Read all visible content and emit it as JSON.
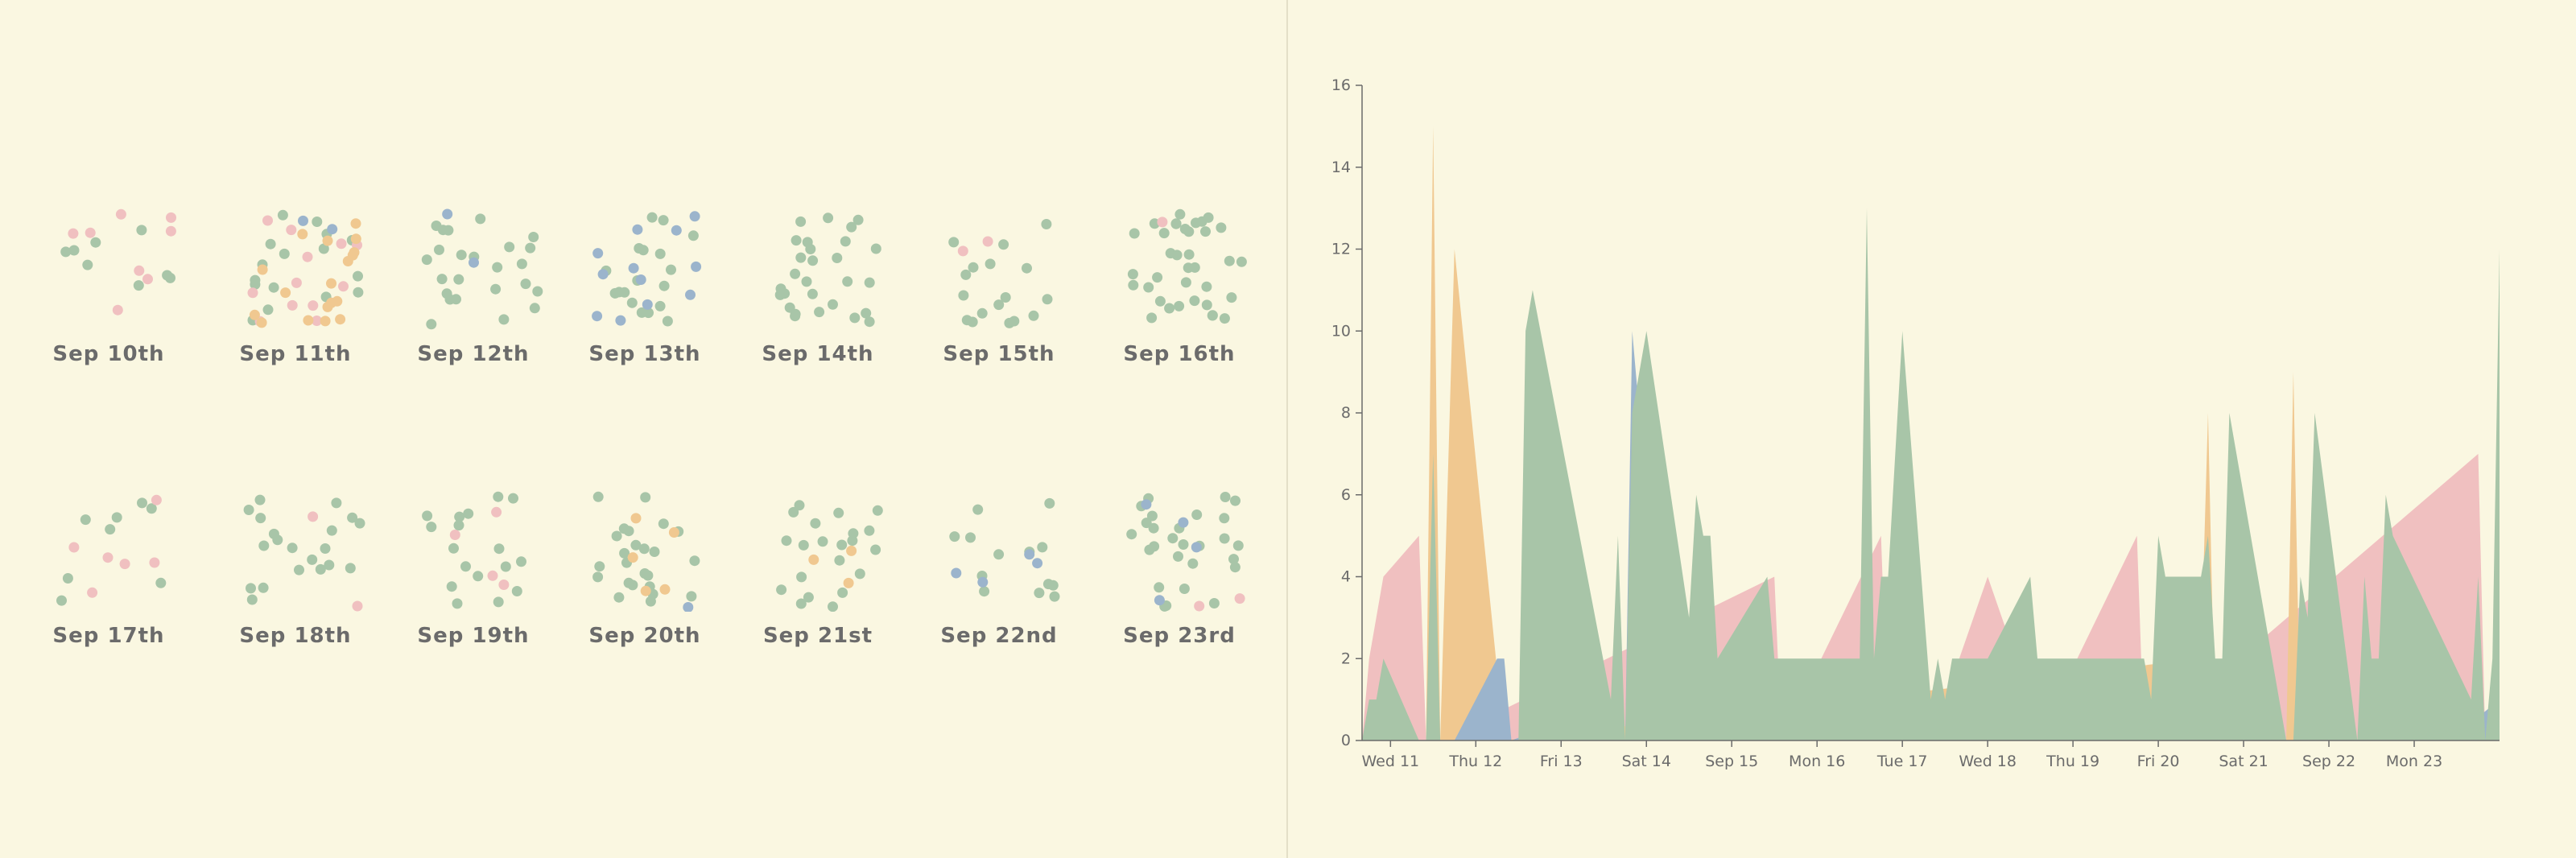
{
  "colors": {
    "background": "#faf7e1",
    "pink": "#f0c0c0",
    "orange": "#f0c890",
    "green": "#a8c5a8",
    "blue": "#9bb4cc",
    "axis": "#6b6b6b"
  },
  "dot_panel": {
    "days": [
      {
        "label": "Sep 10th",
        "counts": {
          "pink": 8,
          "orange": 0,
          "green": 8,
          "blue": 0
        }
      },
      {
        "label": "Sep 11th",
        "counts": {
          "pink": 12,
          "orange": 18,
          "green": 16,
          "blue": 2
        }
      },
      {
        "label": "Sep 12th",
        "counts": {
          "pink": 0,
          "orange": 0,
          "green": 24,
          "blue": 2
        }
      },
      {
        "label": "Sep 13th",
        "counts": {
          "pink": 0,
          "orange": 0,
          "green": 18,
          "blue": 12
        }
      },
      {
        "label": "Sep 14th",
        "counts": {
          "pink": 0,
          "orange": 0,
          "green": 28,
          "blue": 0
        }
      },
      {
        "label": "Sep 15th",
        "counts": {
          "pink": 2,
          "orange": 0,
          "green": 17,
          "blue": 0
        }
      },
      {
        "label": "Sep 16th",
        "counts": {
          "pink": 1,
          "orange": 0,
          "green": 36,
          "blue": 0
        }
      },
      {
        "label": "Sep 17th",
        "counts": {
          "pink": 6,
          "orange": 0,
          "green": 8,
          "blue": 0
        }
      },
      {
        "label": "Sep 18th",
        "counts": {
          "pink": 2,
          "orange": 0,
          "green": 20,
          "blue": 0
        }
      },
      {
        "label": "Sep 19th",
        "counts": {
          "pink": 4,
          "orange": 0,
          "green": 17,
          "blue": 0
        }
      },
      {
        "label": "Sep 20th",
        "counts": {
          "pink": 0,
          "orange": 5,
          "green": 24,
          "blue": 1
        }
      },
      {
        "label": "Sep 21st",
        "counts": {
          "pink": 0,
          "orange": 3,
          "green": 21,
          "blue": 0
        }
      },
      {
        "label": "Sep 22nd",
        "counts": {
          "pink": 0,
          "orange": 0,
          "green": 13,
          "blue": 4
        }
      },
      {
        "label": "Sep 23rd",
        "counts": {
          "pink": 2,
          "orange": 0,
          "green": 27,
          "blue": 4
        }
      }
    ]
  },
  "chart_data": {
    "type": "area",
    "title": "",
    "xlabel": "",
    "ylabel": "",
    "ylim": [
      0,
      16
    ],
    "yticks": [
      0,
      2,
      4,
      6,
      8,
      10,
      12,
      14,
      16
    ],
    "xlim": [
      "2019-09-10T16:00",
      "2019-09-24T00:00"
    ],
    "xticks": [
      {
        "label": "Wed 11",
        "x": "2019-09-11T00:00"
      },
      {
        "label": "Thu 12",
        "x": "2019-09-12T00:00"
      },
      {
        "label": "Fri 13",
        "x": "2019-09-13T00:00"
      },
      {
        "label": "Sat 14",
        "x": "2019-09-14T00:00"
      },
      {
        "label": "Sep 15",
        "x": "2019-09-15T00:00"
      },
      {
        "label": "Mon 16",
        "x": "2019-09-16T00:00"
      },
      {
        "label": "Tue 17",
        "x": "2019-09-17T00:00"
      },
      {
        "label": "Wed 18",
        "x": "2019-09-18T00:00"
      },
      {
        "label": "Thu 19",
        "x": "2019-09-19T00:00"
      },
      {
        "label": "Fri 20",
        "x": "2019-09-20T00:00"
      },
      {
        "label": "Sat 21",
        "x": "2019-09-21T00:00"
      },
      {
        "label": "Sep 22",
        "x": "2019-09-22T00:00"
      },
      {
        "label": "Mon 23",
        "x": "2019-09-23T00:00"
      }
    ],
    "grid": false,
    "series": [
      {
        "color": "pink",
        "points": [
          [
            "2019-09-10T16:00",
            0
          ],
          [
            "2019-09-10T18:00",
            2
          ],
          [
            "2019-09-10T22:00",
            4
          ],
          [
            "2019-09-11T08:00",
            5
          ],
          [
            "2019-09-11T10:00",
            0
          ],
          [
            "2019-09-11T12:00",
            8
          ],
          [
            "2019-09-11T14:00",
            0
          ],
          [
            "2019-09-15T12:00",
            4
          ],
          [
            "2019-09-15T14:00",
            0
          ],
          [
            "2019-09-16T18:00",
            5
          ],
          [
            "2019-09-16T20:00",
            0
          ],
          [
            "2019-09-17T06:00",
            3
          ],
          [
            "2019-09-17T08:00",
            0
          ],
          [
            "2019-09-18T00:00",
            4
          ],
          [
            "2019-09-18T08:00",
            2
          ],
          [
            "2019-09-18T12:00",
            4
          ],
          [
            "2019-09-18T14:00",
            0
          ],
          [
            "2019-09-19T18:00",
            5
          ],
          [
            "2019-09-19T20:00",
            0
          ],
          [
            "2019-09-23T18:00",
            7
          ],
          [
            "2019-09-23T20:00",
            0
          ],
          [
            "2019-09-24T00:00",
            0
          ]
        ]
      },
      {
        "color": "orange",
        "points": [
          [
            "2019-09-10T16:00",
            0
          ],
          [
            "2019-09-11T10:00",
            0
          ],
          [
            "2019-09-11T12:00",
            15
          ],
          [
            "2019-09-11T14:00",
            0
          ],
          [
            "2019-09-11T18:00",
            12
          ],
          [
            "2019-09-12T08:00",
            0
          ],
          [
            "2019-09-20T12:00",
            2
          ],
          [
            "2019-09-20T14:00",
            8
          ],
          [
            "2019-09-20T16:00",
            0
          ],
          [
            "2019-09-21T12:00",
            0
          ],
          [
            "2019-09-21T14:00",
            9
          ],
          [
            "2019-09-21T16:00",
            0
          ],
          [
            "2019-09-24T00:00",
            0
          ]
        ]
      },
      {
        "color": "blue",
        "points": [
          [
            "2019-09-10T16:00",
            0
          ],
          [
            "2019-09-11T18:00",
            0
          ],
          [
            "2019-09-12T06:00",
            2
          ],
          [
            "2019-09-12T08:00",
            2
          ],
          [
            "2019-09-12T10:00",
            0
          ],
          [
            "2019-09-13T16:00",
            1
          ],
          [
            "2019-09-13T18:00",
            0
          ],
          [
            "2019-09-13T20:00",
            10
          ],
          [
            "2019-09-14T06:00",
            0
          ],
          [
            "2019-09-19T22:00",
            0
          ],
          [
            "2019-09-20T10:00",
            1
          ],
          [
            "2019-09-20T12:00",
            0
          ],
          [
            "2019-09-22T22:00",
            0
          ],
          [
            "2019-09-23T02:00",
            2
          ],
          [
            "2019-09-23T10:00",
            0
          ],
          [
            "2019-09-24T00:00",
            1
          ],
          [
            "2019-09-24T00:00",
            0
          ]
        ]
      },
      {
        "color": "green",
        "points": [
          [
            "2019-09-10T16:00",
            0
          ],
          [
            "2019-09-10T18:00",
            1
          ],
          [
            "2019-09-10T20:00",
            1
          ],
          [
            "2019-09-10T22:00",
            2
          ],
          [
            "2019-09-11T08:00",
            0
          ],
          [
            "2019-09-11T10:00",
            0
          ],
          [
            "2019-09-11T12:00",
            7
          ],
          [
            "2019-09-11T14:00",
            0
          ],
          [
            "2019-09-12T08:00",
            0
          ],
          [
            "2019-09-12T12:00",
            0
          ],
          [
            "2019-09-12T14:00",
            10
          ],
          [
            "2019-09-12T16:00",
            11
          ],
          [
            "2019-09-13T14:00",
            1
          ],
          [
            "2019-09-13T16:00",
            5
          ],
          [
            "2019-09-13T18:00",
            0
          ],
          [
            "2019-09-13T20:00",
            8
          ],
          [
            "2019-09-14T00:00",
            10
          ],
          [
            "2019-09-14T12:00",
            3
          ],
          [
            "2019-09-14T14:00",
            6
          ],
          [
            "2019-09-14T16:00",
            5
          ],
          [
            "2019-09-14T18:00",
            5
          ],
          [
            "2019-09-14T20:00",
            2
          ],
          [
            "2019-09-15T10:00",
            4
          ],
          [
            "2019-09-15T12:00",
            2
          ],
          [
            "2019-09-15T16:00",
            2
          ],
          [
            "2019-09-15T18:00",
            2
          ],
          [
            "2019-09-16T12:00",
            2
          ],
          [
            "2019-09-16T14:00",
            13
          ],
          [
            "2019-09-16T16:00",
            2
          ],
          [
            "2019-09-16T18:00",
            4
          ],
          [
            "2019-09-16T20:00",
            4
          ],
          [
            "2019-09-17T00:00",
            10
          ],
          [
            "2019-09-17T08:00",
            1
          ],
          [
            "2019-09-17T10:00",
            2
          ],
          [
            "2019-09-17T12:00",
            1
          ],
          [
            "2019-09-17T14:00",
            2
          ],
          [
            "2019-09-18T00:00",
            2
          ],
          [
            "2019-09-18T12:00",
            4
          ],
          [
            "2019-09-18T14:00",
            2
          ],
          [
            "2019-09-19T00:00",
            2
          ],
          [
            "2019-09-19T18:00",
            2
          ],
          [
            "2019-09-19T20:00",
            2
          ],
          [
            "2019-09-19T22:00",
            1
          ],
          [
            "2019-09-20T00:00",
            5
          ],
          [
            "2019-09-20T02:00",
            4
          ],
          [
            "2019-09-20T12:00",
            4
          ],
          [
            "2019-09-20T14:00",
            5
          ],
          [
            "2019-09-20T16:00",
            2
          ],
          [
            "2019-09-20T18:00",
            2
          ],
          [
            "2019-09-20T20:00",
            8
          ],
          [
            "2019-09-21T12:00",
            0
          ],
          [
            "2019-09-21T14:00",
            0
          ],
          [
            "2019-09-21T16:00",
            4
          ],
          [
            "2019-09-21T18:00",
            3
          ],
          [
            "2019-09-21T20:00",
            8
          ],
          [
            "2019-09-22T08:00",
            0
          ],
          [
            "2019-09-22T10:00",
            4
          ],
          [
            "2019-09-22T12:00",
            2
          ],
          [
            "2019-09-22T14:00",
            2
          ],
          [
            "2019-09-22T16:00",
            6
          ],
          [
            "2019-09-22T18:00",
            5
          ],
          [
            "2019-09-23T16:00",
            1
          ],
          [
            "2019-09-23T18:00",
            4
          ],
          [
            "2019-09-23T20:00",
            0
          ],
          [
            "2019-09-23T22:00",
            2
          ],
          [
            "2019-09-24T00:00",
            12
          ],
          [
            "2019-09-24T00:00",
            0
          ]
        ]
      }
    ]
  }
}
